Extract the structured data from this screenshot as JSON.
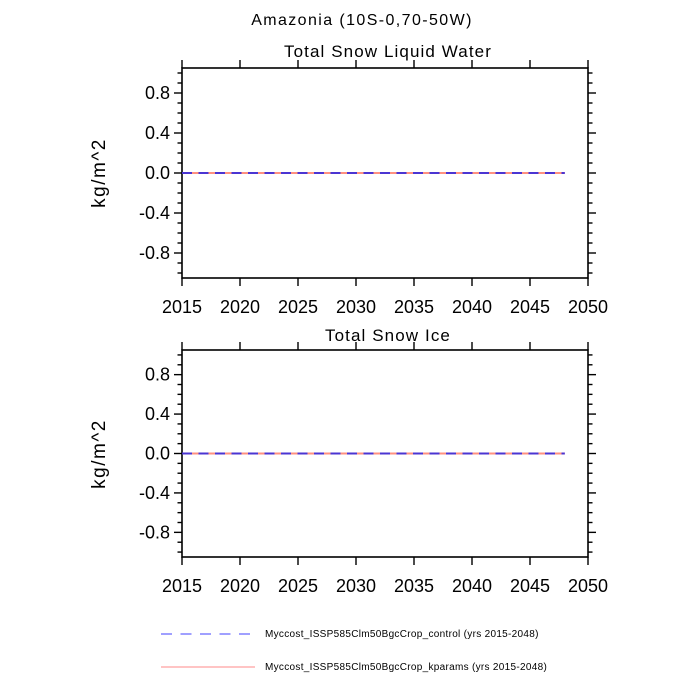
{
  "figure": {
    "main_title": "Amazonia (10S-0,70-50W)",
    "background_color": "#ffffff",
    "axis_color": "#000000"
  },
  "chart_data": [
    {
      "type": "line",
      "title": "Total Snow Liquid Water",
      "xlabel": "",
      "ylabel": "kg/m^2",
      "xlim": [
        2015,
        2050
      ],
      "ylim": [
        -1.05,
        1.05
      ],
      "grid": false,
      "xticks": [
        2015,
        2020,
        2025,
        2030,
        2035,
        2040,
        2045,
        2050
      ],
      "yticks": [
        0.8,
        0.4,
        0.0,
        -0.4,
        -0.8
      ],
      "ytick_labels": [
        "0.8",
        "0.4",
        "0.0",
        "-0.4",
        "-0.8"
      ],
      "y_minor_step": 0.1,
      "series": [
        {
          "name": "Myccost_ISSP585Clm50BgcCrop_kparams (yrs 2015-2048)",
          "x": [
            2015,
            2048
          ],
          "y": [
            0.0,
            0.0
          ],
          "color": "#ff9180",
          "style": "solid",
          "width": 2
        },
        {
          "name": "Myccost_ISSP585Clm50BgcCrop_control (yrs 2015-2048)",
          "x": [
            2015,
            2048
          ],
          "y": [
            0.0,
            0.0
          ],
          "color": "#4b35d2",
          "style": "dashed",
          "width": 2
        }
      ]
    },
    {
      "type": "line",
      "title": "Total Snow Ice",
      "xlabel": "",
      "ylabel": "kg/m^2",
      "xlim": [
        2015,
        2050
      ],
      "ylim": [
        -1.05,
        1.05
      ],
      "grid": false,
      "xticks": [
        2015,
        2020,
        2025,
        2030,
        2035,
        2040,
        2045,
        2050
      ],
      "yticks": [
        0.8,
        0.4,
        0.0,
        -0.4,
        -0.8
      ],
      "ytick_labels": [
        "0.8",
        "0.4",
        "0.0",
        "-0.4",
        "-0.8"
      ],
      "y_minor_step": 0.1,
      "series": [
        {
          "name": "Myccost_ISSP585Clm50BgcCrop_kparams (yrs 2015-2048)",
          "x": [
            2015,
            2048
          ],
          "y": [
            0.0,
            0.0
          ],
          "color": "#ff9180",
          "style": "solid",
          "width": 2
        },
        {
          "name": "Myccost_ISSP585Clm50BgcCrop_control (yrs 2015-2048)",
          "x": [
            2015,
            2048
          ],
          "y": [
            0.0,
            0.0
          ],
          "color": "#4b35d2",
          "style": "dashed",
          "width": 2
        }
      ]
    }
  ],
  "legend": {
    "position": "bottom",
    "items": [
      {
        "label": "Myccost_ISSP585Clm50BgcCrop_control (yrs 2015-2048)",
        "color": "#8080ff",
        "style": "dashed"
      },
      {
        "label": "Myccost_ISSP585Clm50BgcCrop_kparams (yrs 2015-2048)",
        "color": "#ff8a8a",
        "style": "solid"
      }
    ]
  }
}
